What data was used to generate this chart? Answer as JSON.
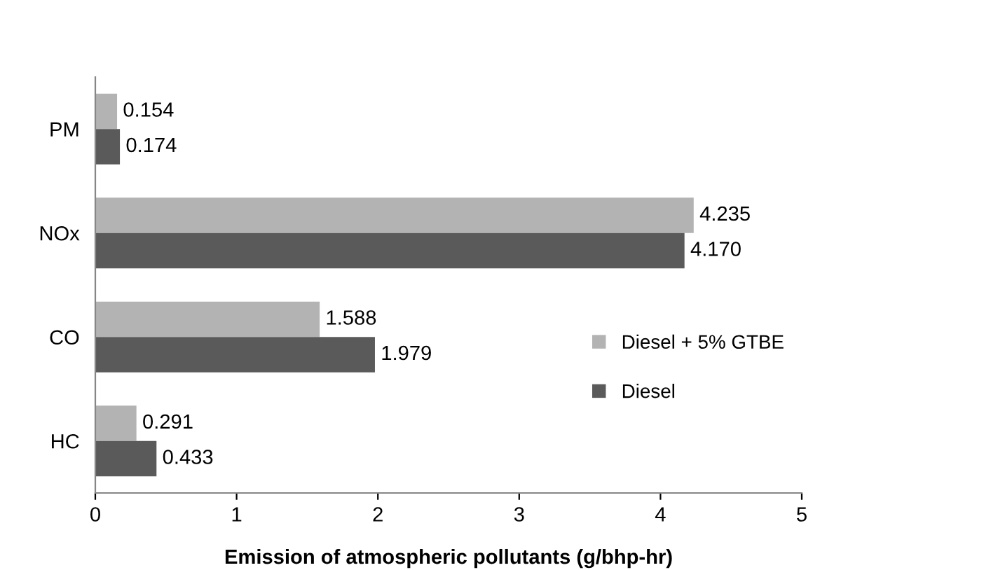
{
  "chart_data": {
    "type": "bar",
    "orientation": "horizontal",
    "xlabel": "Emission of atmospheric pollutants (g/bhp-hr)",
    "categories": [
      "PM",
      "NOx",
      "CO",
      "HC"
    ],
    "series": [
      {
        "name": "Diesel + 5% GTBE",
        "color": "#b3b3b3",
        "values": [
          0.154,
          4.235,
          1.588,
          0.291
        ],
        "value_labels": [
          "0.154",
          "4.235",
          "1.588",
          "0.291"
        ]
      },
      {
        "name": "Diesel",
        "color": "#5a5a5a",
        "values": [
          0.174,
          4.17,
          1.979,
          0.433
        ],
        "value_labels": [
          "0.174",
          "4.170",
          "1.979",
          "0.433"
        ]
      }
    ],
    "xlim": [
      0,
      5
    ],
    "xticks": [
      0,
      1,
      2,
      3,
      4,
      5
    ],
    "grid": false,
    "legend": "right"
  }
}
